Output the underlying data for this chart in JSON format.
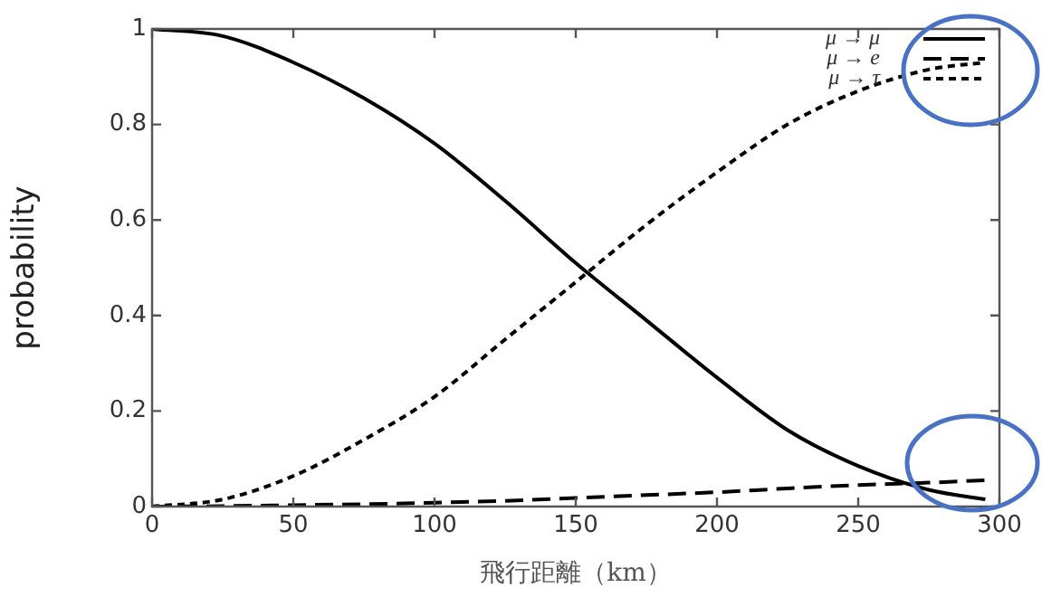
{
  "chart_data": {
    "type": "line",
    "xlabel": "飛行距離（km）",
    "ylabel": "probability",
    "x": [
      0,
      25,
      50,
      75,
      100,
      125,
      150,
      175,
      200,
      225,
      250,
      275,
      295
    ],
    "series": [
      {
        "name": "μ → μ",
        "color": "#000000",
        "line_style": "solid",
        "values": [
          1,
          0.985,
          0.93,
          0.855,
          0.76,
          0.64,
          0.51,
          0.39,
          0.27,
          0.16,
          0.085,
          0.035,
          0.015
        ]
      },
      {
        "name": "μ → e",
        "color": "#000000",
        "line_style": "dashed",
        "values": [
          0,
          0.001,
          0.003,
          0.005,
          0.008,
          0.012,
          0.018,
          0.024,
          0.03,
          0.038,
          0.045,
          0.05,
          0.055
        ]
      },
      {
        "name": "μ → τ",
        "color": "#000000",
        "line_style": "dotted",
        "values": [
          0,
          0.015,
          0.064,
          0.14,
          0.23,
          0.35,
          0.47,
          0.59,
          0.7,
          0.8,
          0.87,
          0.915,
          0.93
        ]
      }
    ],
    "xlim": [
      0,
      300
    ],
    "xticks": [
      0,
      50,
      100,
      150,
      200,
      250,
      300
    ],
    "ylim": [
      0,
      1
    ],
    "yticks": [
      0,
      0.2,
      0.4,
      0.6,
      0.8,
      1
    ],
    "grid": false,
    "legend": "top right",
    "marker": "none"
  }
}
